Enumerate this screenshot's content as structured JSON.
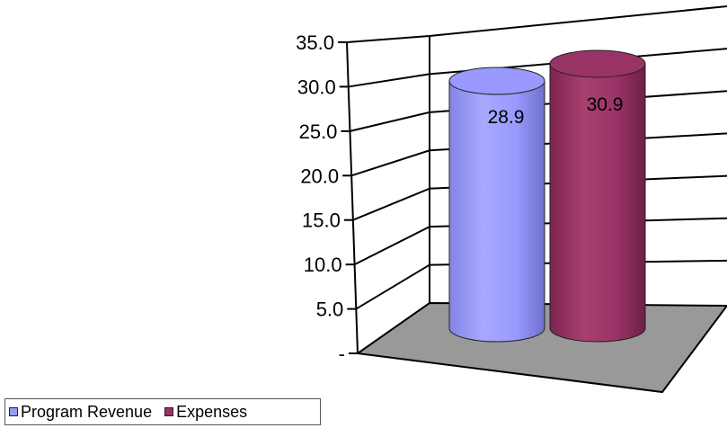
{
  "chart_data": {
    "type": "bar",
    "style": "3d-cylinder",
    "series": [
      {
        "name": "Program Revenue",
        "value": 28.9,
        "label": "28.9",
        "color": "#9999ff"
      },
      {
        "name": "Expenses",
        "value": 30.9,
        "label": "30.9",
        "color": "#993366"
      }
    ],
    "y_ticks": [
      {
        "value": 0,
        "label": "-"
      },
      {
        "value": 5,
        "label": "5.0"
      },
      {
        "value": 10,
        "label": "10.0"
      },
      {
        "value": 15,
        "label": "15.0"
      },
      {
        "value": 20,
        "label": "20.0"
      },
      {
        "value": 25,
        "label": "25.0"
      },
      {
        "value": 30,
        "label": "30.0"
      },
      {
        "value": 35,
        "label": "35.0"
      }
    ],
    "ylim": [
      0,
      35
    ],
    "grid": true,
    "legend_position": "bottom-left",
    "floor_color": "#999999"
  }
}
